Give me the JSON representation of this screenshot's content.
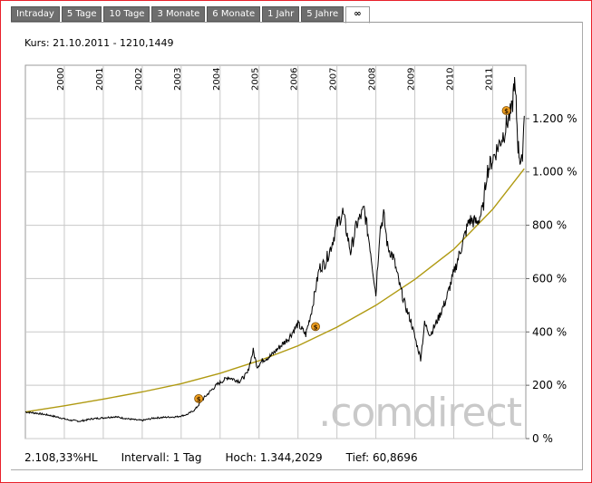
{
  "tabs": [
    "Intraday",
    "5 Tage",
    "10 Tage",
    "3 Monate",
    "6 Monate",
    "1 Jahr",
    "5 Jahre",
    "∞"
  ],
  "active_tab_index": 7,
  "header": {
    "kurs": "Kurs: 21.10.2011 - 1210,1449"
  },
  "footer": {
    "performance": "2.108,33%HL",
    "interval": "Intervall: 1 Tag",
    "high": "Hoch: 1.344,2029",
    "low": "Tief: 60,8696"
  },
  "watermark": ".comdirect",
  "colors": {
    "frame": "#e8202a",
    "price": "#000000",
    "trend": "#b09a12",
    "grid": "#c8c8c8",
    "marker": "#f0a020"
  },
  "chart_data": {
    "type": "line",
    "x_unit": "year",
    "xlim": [
      1999.0,
      2011.85
    ],
    "ylim": [
      0,
      1400
    ],
    "y_ticks": [
      0,
      200,
      400,
      600,
      800,
      1000,
      1200
    ],
    "y_tick_labels": [
      "0 %",
      "200 %",
      "400 %",
      "600 %",
      "800 %",
      "1.000 %",
      "1.200 %"
    ],
    "x_ticks": [
      2000,
      2001,
      2002,
      2003,
      2004,
      2005,
      2006,
      2007,
      2008,
      2009,
      2010,
      2011
    ],
    "x_tick_labels": [
      "2000",
      "2001",
      "2002",
      "2003",
      "2004",
      "2005",
      "2006",
      "2007",
      "2008",
      "2009",
      "2010",
      "2011"
    ],
    "series": [
      {
        "name": "Kurs",
        "x": [
          1999.0,
          1999.3,
          1999.6,
          1999.9,
          2000.1,
          2000.4,
          2000.7,
          2001.0,
          2001.3,
          2001.6,
          2001.85,
          2002.0,
          2002.3,
          2002.6,
          2002.9,
          2003.15,
          2003.35,
          2003.6,
          2003.9,
          2004.2,
          2004.5,
          2004.7,
          2004.85,
          2004.95,
          2005.1,
          2005.3,
          2005.5,
          2005.75,
          2006.0,
          2006.2,
          2006.35,
          2006.45,
          2006.55,
          2006.7,
          2006.85,
          2007.0,
          2007.15,
          2007.35,
          2007.5,
          2007.7,
          2007.85,
          2008.0,
          2008.1,
          2008.2,
          2008.3,
          2008.45,
          2008.6,
          2008.75,
          2008.9,
          2009.0,
          2009.15,
          2009.25,
          2009.4,
          2009.6,
          2009.8,
          2010.0,
          2010.2,
          2010.4,
          2010.6,
          2010.75,
          2010.85,
          2011.0,
          2011.15,
          2011.3,
          2011.4,
          2011.5,
          2011.55,
          2011.6,
          2011.65,
          2011.7,
          2011.75,
          2011.81
        ],
        "y": [
          100,
          95,
          88,
          78,
          70,
          65,
          74,
          78,
          82,
          75,
          70,
          68,
          77,
          80,
          82,
          90,
          108,
          155,
          200,
          230,
          215,
          245,
          330,
          270,
          295,
          310,
          340,
          375,
          430,
          390,
          480,
          560,
          640,
          660,
          720,
          800,
          850,
          700,
          800,
          860,
          720,
          540,
          780,
          840,
          720,
          680,
          580,
          500,
          440,
          380,
          300,
          430,
          390,
          450,
          520,
          620,
          720,
          820,
          810,
          860,
          1000,
          1050,
          1100,
          1150,
          1200,
          1230,
          1344,
          1250,
          1100,
          1050,
          1030,
          1210
        ]
      },
      {
        "name": "Trend",
        "x": [
          1999.0,
          2000.0,
          2001.0,
          2002.0,
          2003.0,
          2004.0,
          2005.0,
          2006.0,
          2007.0,
          2008.0,
          2009.0,
          2010.0,
          2011.0,
          2011.81
        ],
        "y": [
          100,
          123,
          148,
          175,
          206,
          245,
          292,
          348,
          418,
          500,
          597,
          710,
          860,
          1012
        ]
      }
    ],
    "markers": [
      {
        "x": 2003.45,
        "y": 150,
        "label": "$"
      },
      {
        "x": 2006.45,
        "y": 420,
        "label": "$"
      },
      {
        "x": 2011.35,
        "y": 1230,
        "label": "$"
      }
    ]
  }
}
